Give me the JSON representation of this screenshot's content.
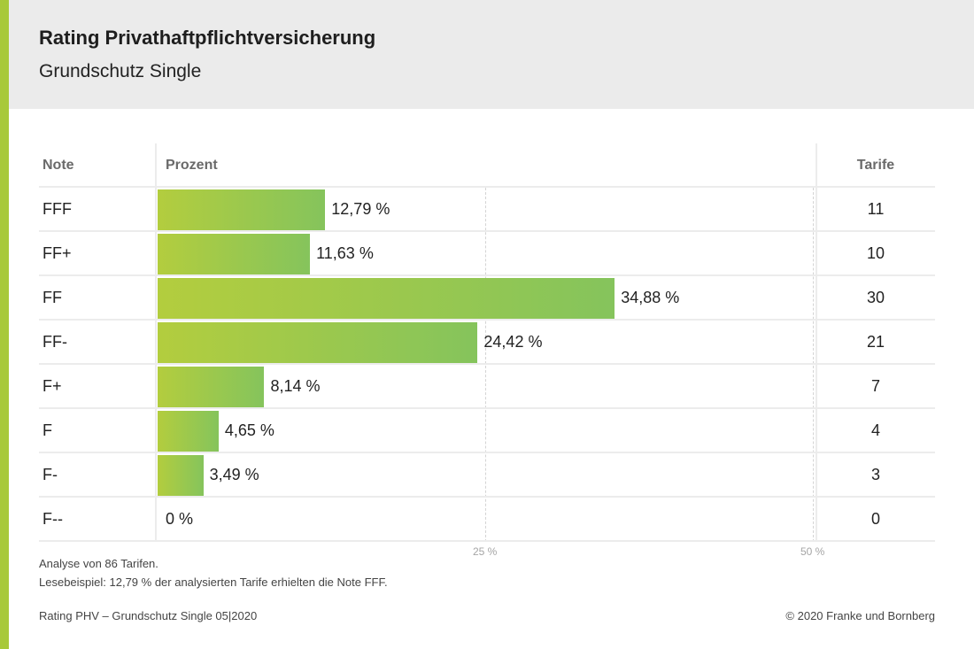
{
  "header": {
    "title": "Rating Privathaftpflichtversicherung",
    "subtitle": "Grundschutz Single"
  },
  "colors": {
    "accent": "#a8c93a",
    "bar_start": "#b3cd3e",
    "bar_end": "#85c45c",
    "header_bg": "#ebebeb"
  },
  "chart_data": {
    "type": "bar",
    "orientation": "horizontal",
    "columns": {
      "note": "Note",
      "percent": "Prozent",
      "tarife": "Tarife"
    },
    "categories": [
      "FFF",
      "FF+",
      "FF",
      "FF-",
      "F+",
      "F",
      "F-",
      "F--"
    ],
    "values": [
      12.79,
      11.63,
      34.88,
      24.42,
      8.14,
      4.65,
      3.49,
      0
    ],
    "value_labels": [
      "12,79 %",
      "11,63 %",
      "34,88 %",
      "24,42 %",
      "8,14 %",
      "4,65 %",
      "3,49 %",
      "0 %"
    ],
    "tarife": [
      11,
      10,
      30,
      21,
      7,
      4,
      3,
      0
    ],
    "xlim": [
      0,
      50
    ],
    "gridlines": [
      25,
      50
    ],
    "gridline_labels": [
      "25 %",
      "50 %"
    ]
  },
  "footer": {
    "note1": "Analyse von 86 Tarifen.",
    "note2": "Lesebeispiel: 12,79 % der analysierten Tarife erhielten die Note FFF.",
    "source": "Rating PHV – Grundschutz Single 05|2020",
    "copyright": "© 2020 Franke und Bornberg"
  }
}
